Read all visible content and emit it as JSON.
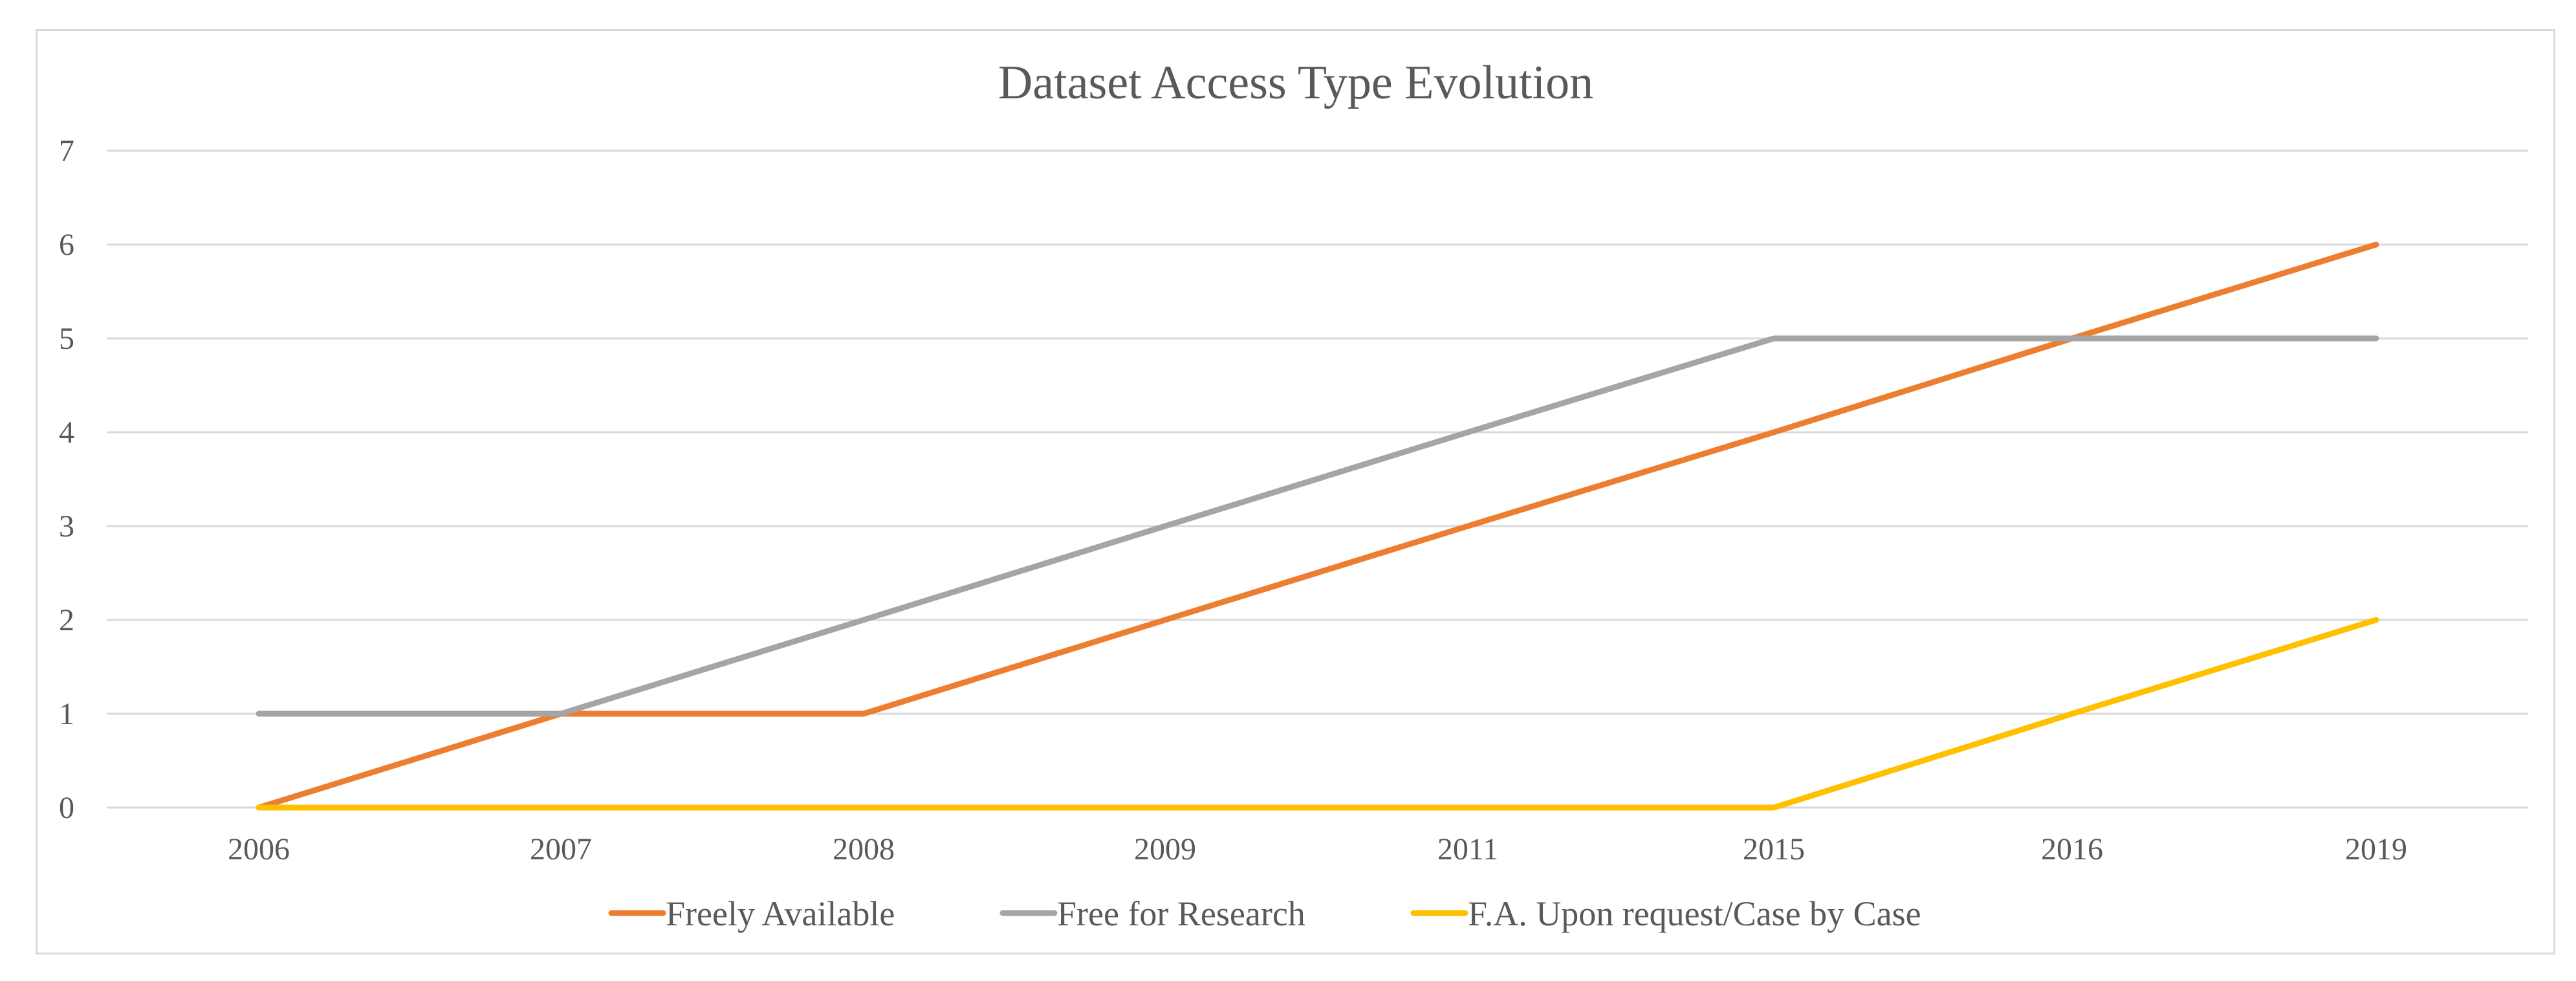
{
  "chart_data": {
    "type": "line",
    "title": "Dataset Access Type Evolution",
    "xlabel": "",
    "ylabel": "",
    "categories": [
      "2006",
      "2007",
      "2008",
      "2009",
      "2011",
      "2015",
      "2016",
      "2019"
    ],
    "y_ticks": [
      "0",
      "1",
      "2",
      "3",
      "4",
      "5",
      "6",
      "7"
    ],
    "ylim": [
      0,
      7
    ],
    "grid": true,
    "legend_position": "bottom",
    "series": [
      {
        "name": "Freely Available",
        "color": "#ed7d31",
        "values": [
          0,
          1,
          1,
          2,
          3,
          4,
          5,
          6
        ]
      },
      {
        "name": "Free for Research",
        "color": "#a5a5a5",
        "values": [
          1,
          1,
          2,
          3,
          4,
          5,
          5,
          5
        ]
      },
      {
        "name": "F.A. Upon request/Case by Case",
        "color": "#ffc000",
        "values": [
          0,
          0,
          0,
          0,
          0,
          0,
          1,
          2
        ]
      }
    ]
  }
}
